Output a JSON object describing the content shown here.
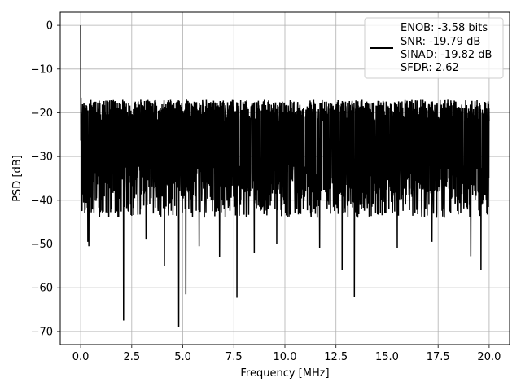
{
  "chart_data": {
    "type": "line",
    "title": "",
    "xlabel": "Frequency [MHz]",
    "ylabel": "PSD [dB]",
    "xlim": [
      -1.0,
      21.0
    ],
    "ylim": [
      -73,
      3
    ],
    "xticks": [
      0.0,
      2.5,
      5.0,
      7.5,
      10.0,
      12.5,
      15.0,
      17.5,
      20.0
    ],
    "xtick_labels": [
      "0.0",
      "2.5",
      "5.0",
      "7.5",
      "10.0",
      "12.5",
      "15.0",
      "17.5",
      "20.0"
    ],
    "yticks": [
      0,
      -10,
      -20,
      -30,
      -40,
      -50,
      -60,
      -70
    ],
    "ytick_labels": [
      "0",
      "−10",
      "−20",
      "−30",
      "−40",
      "−50",
      "−60",
      "−70"
    ],
    "grid": true,
    "legend_position": "top-right",
    "legend": {
      "lines": [
        "ENOB: -3.58 bits",
        "SNR: -19.79 dB",
        "SINAD: -19.82 dB",
        "SFDR: 2.62"
      ]
    },
    "series": [
      {
        "color": "#000000",
        "x_range": [
          0.0,
          20.0
        ],
        "peak": {
          "x": 0.0,
          "y": 0.0
        },
        "typical_upper": -17,
        "typical_lower": -38,
        "deep_dips": [
          {
            "x": 0.35,
            "y": -49.5
          },
          {
            "x": 0.4,
            "y": -50.5
          },
          {
            "x": 2.1,
            "y": -67.5
          },
          {
            "x": 3.2,
            "y": -49
          },
          {
            "x": 4.1,
            "y": -55
          },
          {
            "x": 4.8,
            "y": -69
          },
          {
            "x": 5.15,
            "y": -61.5
          },
          {
            "x": 5.8,
            "y": -50.5
          },
          {
            "x": 6.8,
            "y": -53
          },
          {
            "x": 7.65,
            "y": -62.3
          },
          {
            "x": 8.5,
            "y": -52
          },
          {
            "x": 9.6,
            "y": -50
          },
          {
            "x": 11.7,
            "y": -51
          },
          {
            "x": 12.8,
            "y": -56
          },
          {
            "x": 13.4,
            "y": -62
          },
          {
            "x": 15.5,
            "y": -51
          },
          {
            "x": 17.2,
            "y": -49.5
          },
          {
            "x": 19.1,
            "y": -52.8
          },
          {
            "x": 19.6,
            "y": -56
          }
        ]
      }
    ]
  }
}
